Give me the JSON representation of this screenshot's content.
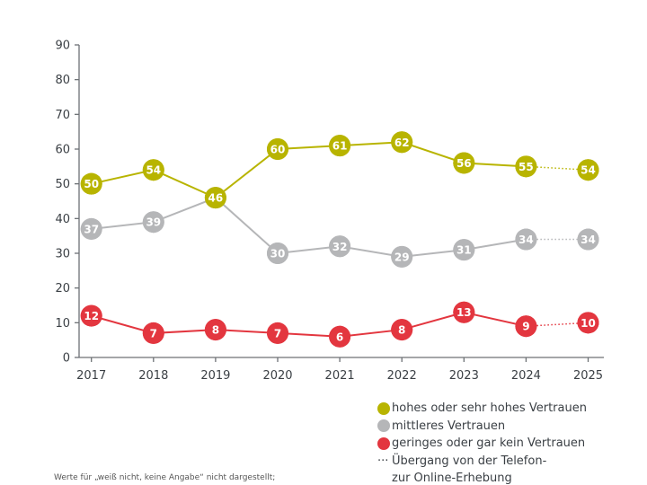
{
  "chart_data": {
    "type": "line",
    "x": [
      "2017",
      "2018",
      "2019",
      "2020",
      "2021",
      "2022",
      "2023",
      "2024",
      "2025"
    ],
    "ylim": [
      0,
      90
    ],
    "yticks": [
      0,
      10,
      20,
      30,
      40,
      50,
      60,
      70,
      80,
      90
    ],
    "grid": false,
    "legend_position": "bottom-right",
    "series": [
      {
        "name": "hohes oder sehr hohes Vertrauen",
        "color": "#b8b400",
        "values": [
          50,
          54,
          46,
          60,
          61,
          62,
          56,
          55,
          54
        ]
      },
      {
        "name": "mittleres Vertrauen",
        "color": "#b5b6b8",
        "values": [
          37,
          39,
          46,
          30,
          32,
          29,
          31,
          34,
          34
        ]
      },
      {
        "name": "geringes oder gar kein Vertrauen",
        "color": "#e3363f",
        "values": [
          12,
          7,
          8,
          7,
          6,
          8,
          13,
          9,
          10
        ]
      }
    ],
    "dotted_segment_from": "2024",
    "dotted_legend": "Übergang von der Telefon-",
    "dotted_legend_2": "zur Online-Erhebung",
    "dotted_legend_symbol": "···"
  },
  "footnote": "Werte für „weiß nicht, keine Angabe“ nicht dargestellt;"
}
